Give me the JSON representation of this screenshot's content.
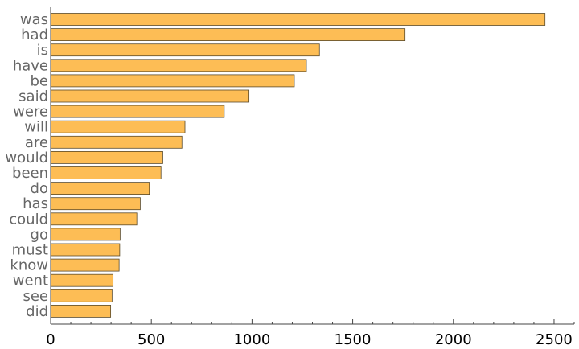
{
  "chart_data": {
    "type": "bar",
    "orientation": "horizontal",
    "categories": [
      "was",
      "had",
      "is",
      "have",
      "be",
      "said",
      "were",
      "will",
      "are",
      "would",
      "been",
      "do",
      "has",
      "could",
      "go",
      "must",
      "know",
      "went",
      "see",
      "did"
    ],
    "values": [
      2455,
      1760,
      1335,
      1270,
      1210,
      985,
      862,
      667,
      652,
      557,
      548,
      490,
      445,
      428,
      345,
      343,
      340,
      310,
      305,
      298
    ],
    "title": "",
    "xlabel": "",
    "ylabel": "",
    "xlim": [
      0,
      2600
    ],
    "x_ticks": [
      0,
      500,
      1000,
      1500,
      2000,
      2500
    ],
    "x_tick_labels": [
      "0",
      "500",
      "1000",
      "1500",
      "2000",
      "2500"
    ],
    "bar_color": "#fdbd55",
    "grid": false,
    "legend": "none"
  }
}
